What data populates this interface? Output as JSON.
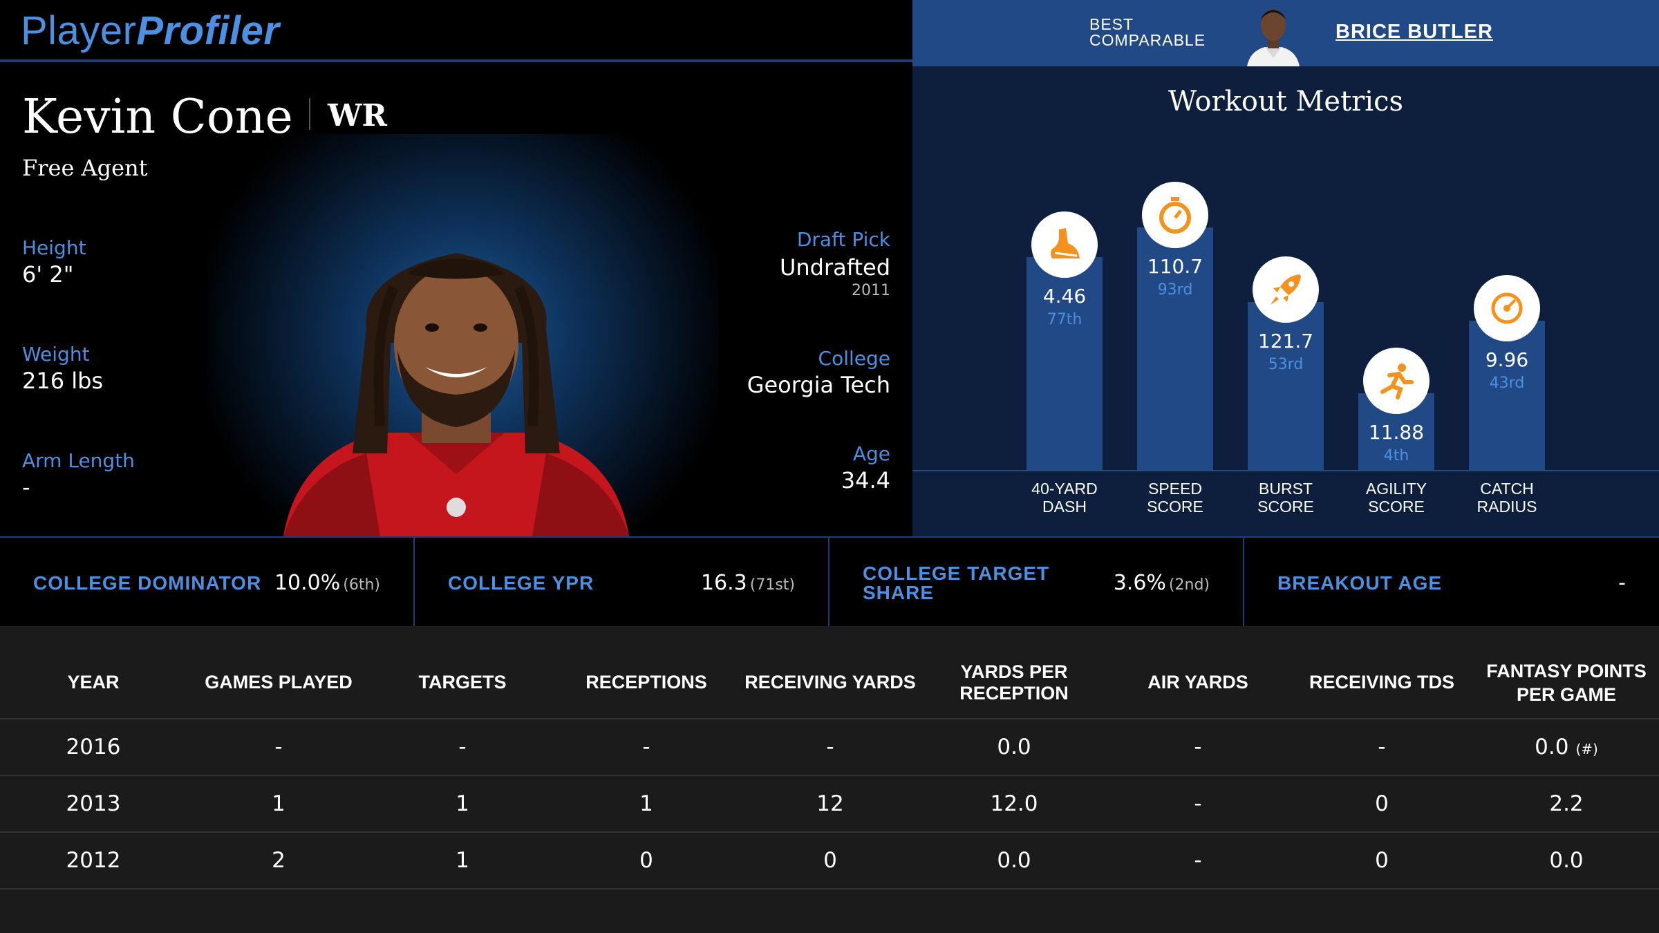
{
  "header": {
    "logo_part1": "Player",
    "logo_part2": "Profiler",
    "best_comparable_label_line1": "BEST",
    "best_comparable_label_line2": "COMPARABLE",
    "best_comparable_name": "BRICE BUTLER"
  },
  "player": {
    "name": "Kevin Cone",
    "position": "WR",
    "team": "Free Agent",
    "height_label": "Height",
    "height": "6' 2\"",
    "weight_label": "Weight",
    "weight": "216 lbs",
    "arm_label": "Arm Length",
    "arm": "-",
    "draft_label": "Draft Pick",
    "draft": "Undrafted",
    "draft_year": "2011",
    "college_label": "College",
    "college": "Georgia Tech",
    "age_label": "Age",
    "age": "34.4"
  },
  "workout": {
    "title": "Workout Metrics",
    "metrics": [
      {
        "label_line1": "40-YARD",
        "label_line2": "DASH",
        "value": "4.46",
        "percentile_rank": "77th",
        "percentile": 77,
        "icon": "shoe-icon"
      },
      {
        "label_line1": "SPEED",
        "label_line2": "SCORE",
        "value": "110.7",
        "percentile_rank": "93rd",
        "percentile": 93,
        "icon": "stopwatch-icon"
      },
      {
        "label_line1": "BURST",
        "label_line2": "SCORE",
        "value": "121.7",
        "percentile_rank": "53rd",
        "percentile": 53,
        "icon": "rocket-icon"
      },
      {
        "label_line1": "AGILITY",
        "label_line2": "SCORE",
        "value": "11.88",
        "percentile_rank": "4th",
        "percentile": 4,
        "icon": "runner-icon"
      },
      {
        "label_line1": "CATCH",
        "label_line2": "RADIUS",
        "value": "9.96",
        "percentile_rank": "43rd",
        "percentile": 43,
        "icon": "target-icon"
      }
    ]
  },
  "stats": {
    "dominator_label": "COLLEGE DOMINATOR",
    "dominator_value": "10.0%",
    "dominator_rank": "(6th)",
    "ypr_label": "COLLEGE YPR",
    "ypr_value": "16.3",
    "ypr_rank": "(71st)",
    "target_share_label_line1": "COLLEGE TARGET",
    "target_share_label_line2": "SHARE",
    "target_share_value": "3.6%",
    "target_share_rank": "(2nd)",
    "breakout_label": "BREAKOUT AGE",
    "breakout_value": "-"
  },
  "table": {
    "headers": [
      "YEAR",
      "GAMES PLAYED",
      "TARGETS",
      "RECEPTIONS",
      "RECEIVING YARDS",
      "YARDS PER RECEPTION",
      "AIR YARDS",
      "RECEIVING TDS",
      "FANTASY POINTS PER GAME"
    ],
    "rows": [
      [
        "2016",
        "-",
        "-",
        "-",
        "-",
        "0.0",
        "-",
        "-",
        "0.0"
      ],
      [
        "2013",
        "1",
        "1",
        "1",
        "12",
        "12.0",
        "-",
        "0",
        "2.2"
      ],
      [
        "2012",
        "2",
        "1",
        "0",
        "0",
        "0.0",
        "-",
        "0",
        "0.0"
      ]
    ],
    "hash_marker": "(#)"
  },
  "colors": {
    "accent_blue": "#4d8fe0",
    "bar_blue": "#214986",
    "panel_navy": "#0d1f3c",
    "icon_orange": "#f5921e"
  }
}
